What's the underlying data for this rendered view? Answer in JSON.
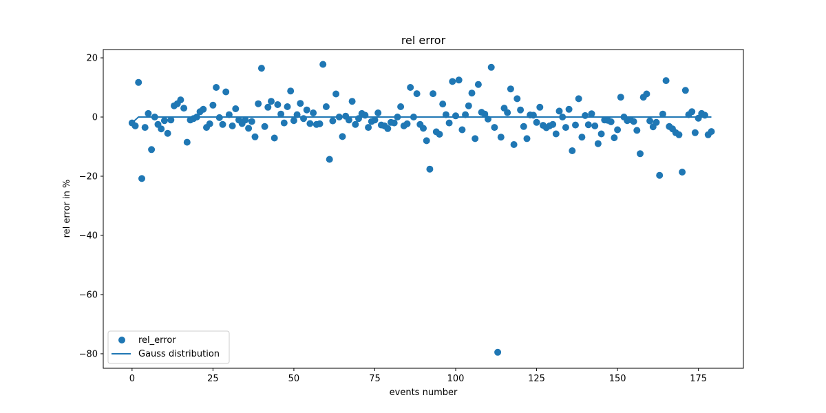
{
  "chart_data": {
    "type": "scatter",
    "title": "rel error",
    "xlabel": "events number",
    "ylabel": "rel error in %",
    "xlim": [
      -8.9,
      188.9
    ],
    "ylim": [
      -84.9,
      22.8
    ],
    "xticks": [
      0,
      25,
      50,
      75,
      100,
      125,
      150,
      175
    ],
    "yticks": [
      -80,
      -60,
      -40,
      -20,
      0,
      20
    ],
    "grid": false,
    "legend_position": "lower-left",
    "colors": {
      "points": "#1f77b4",
      "line": "#1f77b4"
    },
    "series": [
      {
        "name": "rel_error",
        "kind": "scatter",
        "x": [
          0,
          1,
          2,
          3,
          4,
          5,
          6,
          7,
          8,
          9,
          10,
          11,
          12,
          13,
          14,
          15,
          16,
          17,
          18,
          19,
          20,
          21,
          22,
          23,
          24,
          25,
          26,
          27,
          28,
          29,
          30,
          31,
          32,
          33,
          34,
          35,
          36,
          37,
          38,
          39,
          40,
          41,
          42,
          43,
          44,
          45,
          46,
          47,
          48,
          49,
          50,
          51,
          52,
          53,
          54,
          55,
          56,
          57,
          58,
          59,
          60,
          61,
          62,
          63,
          64,
          65,
          66,
          67,
          68,
          69,
          70,
          71,
          72,
          73,
          74,
          75,
          76,
          77,
          78,
          79,
          80,
          81,
          82,
          83,
          84,
          85,
          86,
          87,
          88,
          89,
          90,
          91,
          92,
          93,
          94,
          95,
          96,
          97,
          98,
          99,
          100,
          101,
          102,
          103,
          104,
          105,
          106,
          107,
          108,
          109,
          110,
          111,
          112,
          113,
          114,
          115,
          116,
          117,
          118,
          119,
          120,
          121,
          122,
          123,
          124,
          125,
          126,
          127,
          128,
          129,
          130,
          131,
          132,
          133,
          134,
          135,
          136,
          137,
          138,
          139,
          140,
          141,
          142,
          143,
          144,
          145,
          146,
          147,
          148,
          149,
          150,
          151,
          152,
          153,
          154,
          155,
          156,
          157,
          158,
          159,
          160,
          161,
          162,
          163,
          164,
          165,
          166,
          167,
          168,
          169,
          170,
          171,
          172,
          173,
          174,
          175,
          176,
          177,
          178,
          179
        ],
        "y": [
          -2.0,
          -3.0,
          11.7,
          -20.8,
          -3.5,
          1.2,
          -11.0,
          0.0,
          -2.5,
          -4.0,
          -1.2,
          -5.5,
          -1.0,
          3.8,
          4.5,
          5.8,
          3.0,
          -8.5,
          -1.0,
          -0.5,
          0.0,
          1.8,
          2.6,
          -3.5,
          -2.3,
          4.0,
          10.0,
          -0.2,
          -2.5,
          8.5,
          0.8,
          -3.0,
          2.8,
          -1.0,
          -2.2,
          -1.0,
          -3.8,
          -1.5,
          -6.7,
          4.5,
          16.5,
          -3.2,
          3.3,
          5.3,
          -7.1,
          4.2,
          1.0,
          -2.0,
          3.5,
          8.8,
          -1.2,
          0.8,
          4.6,
          -0.5,
          2.4,
          -2.2,
          1.4,
          -2.5,
          -2.3,
          17.8,
          3.5,
          -14.3,
          -1.3,
          7.8,
          0.0,
          -6.6,
          0.3,
          -1.0,
          5.3,
          -2.5,
          -0.5,
          1.2,
          0.6,
          -3.5,
          -1.5,
          -1.0,
          1.4,
          -2.7,
          -3.0,
          -3.9,
          -1.8,
          -2.0,
          0.0,
          3.5,
          -3.0,
          -2.3,
          10.0,
          0.0,
          7.9,
          -2.5,
          -3.8,
          -8.0,
          -17.6,
          7.9,
          -5.0,
          -5.8,
          4.4,
          0.8,
          -2.0,
          12.0,
          0.4,
          12.5,
          -4.3,
          0.8,
          3.8,
          8.1,
          -7.3,
          11.0,
          1.6,
          1.0,
          -0.7,
          16.8,
          -3.5,
          -79.5,
          -6.8,
          3.0,
          1.5,
          9.5,
          -9.3,
          6.2,
          2.4,
          -3.2,
          -7.3,
          0.7,
          0.6,
          -1.8,
          3.3,
          -2.8,
          -3.6,
          -3.0,
          -2.5,
          -5.7,
          2.0,
          0.0,
          -3.5,
          2.6,
          -11.4,
          -2.7,
          6.2,
          -6.8,
          0.5,
          -2.6,
          1.1,
          -3.0,
          -9.0,
          -5.7,
          -1.0,
          -1.1,
          -1.6,
          -7.0,
          -4.3,
          6.7,
          0.0,
          -1.2,
          -0.9,
          -1.5,
          -4.5,
          -12.4,
          6.7,
          7.8,
          -1.3,
          -3.3,
          -1.8,
          -19.7,
          1.0,
          12.3,
          -3.2,
          -4.0,
          -5.3,
          -6.0,
          -18.6,
          9.0,
          0.8,
          1.8,
          -5.3,
          -0.4,
          1.2,
          0.6,
          -6.0,
          -4.9
        ]
      },
      {
        "name": "Gauss distribution",
        "kind": "line",
        "x": [
          0,
          1,
          2,
          3,
          179
        ],
        "y": [
          -2.0,
          -1.0,
          0.0,
          0.0,
          0.0
        ]
      }
    ]
  }
}
